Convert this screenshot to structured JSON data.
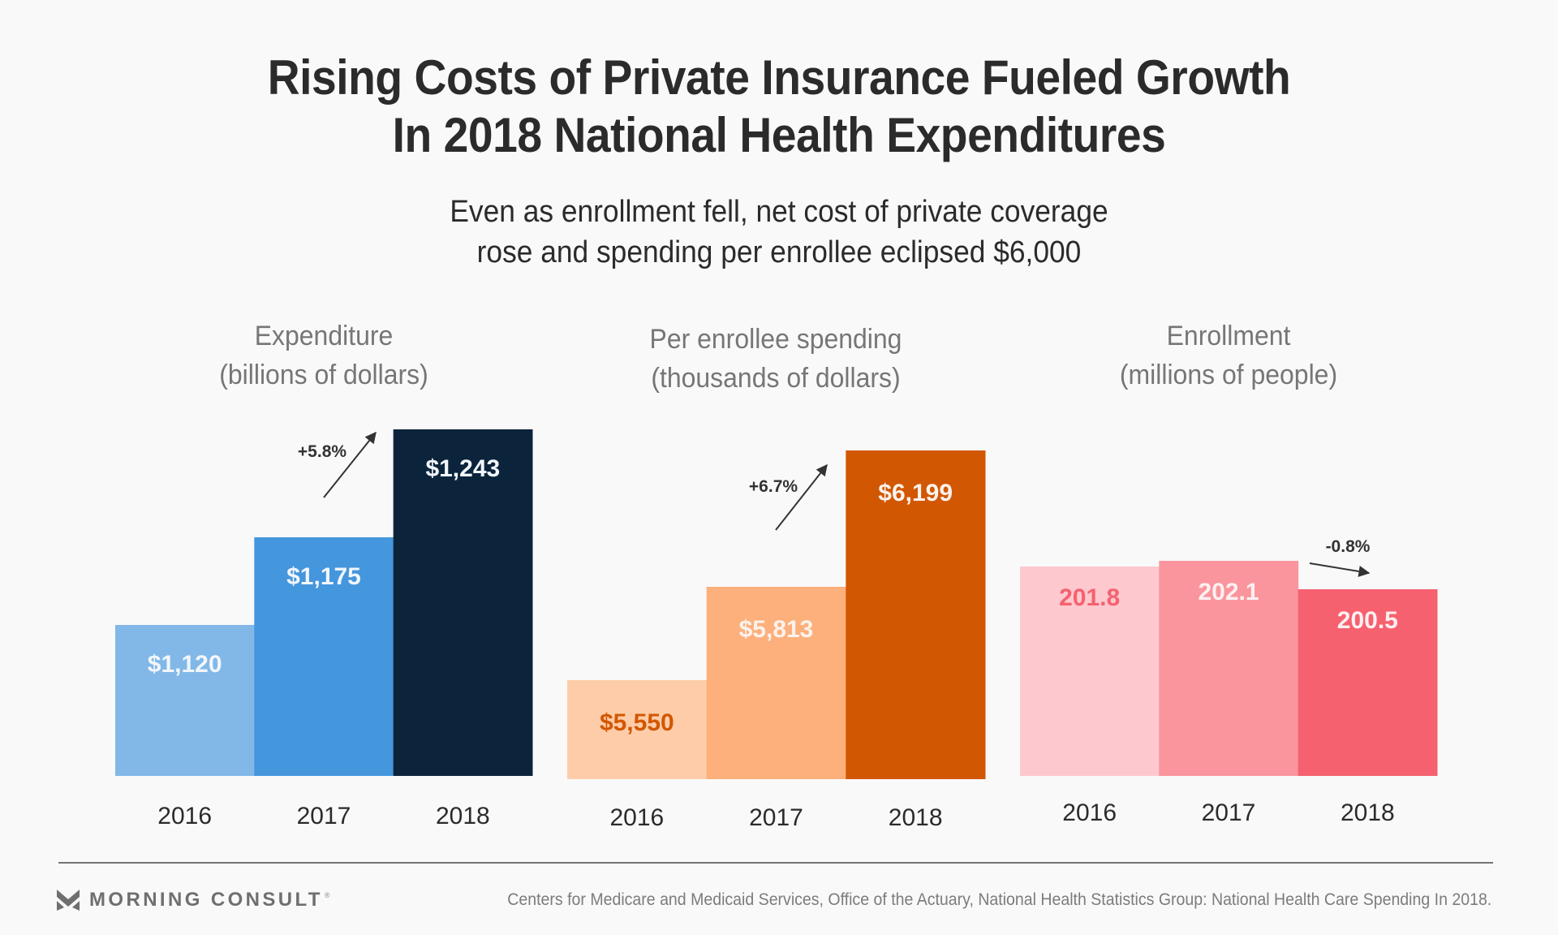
{
  "title": {
    "line1": "Rising Costs of Private Insurance Fueled Growth",
    "line2": "In 2018 National Health Expenditures"
  },
  "subtitle": {
    "line1": "Even as enrollment fell, net cost of private coverage",
    "line2": "rose and spending per enrollee eclipsed $6,000"
  },
  "chart_data": [
    {
      "type": "bar",
      "title": "Expenditure",
      "ylabel": "(billions of dollars)",
      "categories": [
        "2016",
        "2017",
        "2018"
      ],
      "values": [
        1120,
        1175,
        1243
      ],
      "value_labels": [
        "$1,120",
        "$1,175",
        "$1,243"
      ],
      "colors": [
        "#82b8e8",
        "#4496dd",
        "#0c243b"
      ],
      "label_colors": [
        "#f2f6fb",
        "#f2f6fb",
        "#f2f6fb"
      ],
      "change_annotation": {
        "text": "+5.8%",
        "direction": "up",
        "between": [
          "2017",
          "2018"
        ]
      },
      "grid": false,
      "legend": "none"
    },
    {
      "type": "bar",
      "title": "Per enrollee spending",
      "ylabel": "(thousands of dollars)",
      "categories": [
        "2016",
        "2017",
        "2018"
      ],
      "values": [
        5550,
        5813,
        6199
      ],
      "value_labels": [
        "$5,550",
        "$5,813",
        "$6,199"
      ],
      "colors": [
        "#fecca8",
        "#fdb07c",
        "#d25702"
      ],
      "label_colors": [
        "#d25702",
        "#fbf3ec",
        "#fbf3ec"
      ],
      "change_annotation": {
        "text": "+6.7%",
        "direction": "up",
        "between": [
          "2017",
          "2018"
        ]
      },
      "grid": false,
      "legend": "none"
    },
    {
      "type": "bar",
      "title": "Enrollment",
      "ylabel": "(millions of people)",
      "categories": [
        "2016",
        "2017",
        "2018"
      ],
      "values": [
        201.8,
        202.1,
        200.5
      ],
      "value_labels": [
        "201.8",
        "202.1",
        "200.5"
      ],
      "colors": [
        "#fdc9ce",
        "#fa959d",
        "#f6616f"
      ],
      "label_colors": [
        "#f6616f",
        "#fdf0f1",
        "#fdf0f1"
      ],
      "change_annotation": {
        "text": "-0.8%",
        "direction": "down",
        "between": [
          "2017",
          "2018"
        ]
      },
      "grid": false,
      "legend": "none"
    }
  ],
  "footer": {
    "brand": "MORNING CONSULT",
    "brand_mark": "®",
    "logo_icon": "morning-consult-chevron-icon",
    "source": "Centers for Medicare and Medicaid Services, Office of the Actuary, National Health Statistics Group: National Health Care Spending In 2018."
  }
}
